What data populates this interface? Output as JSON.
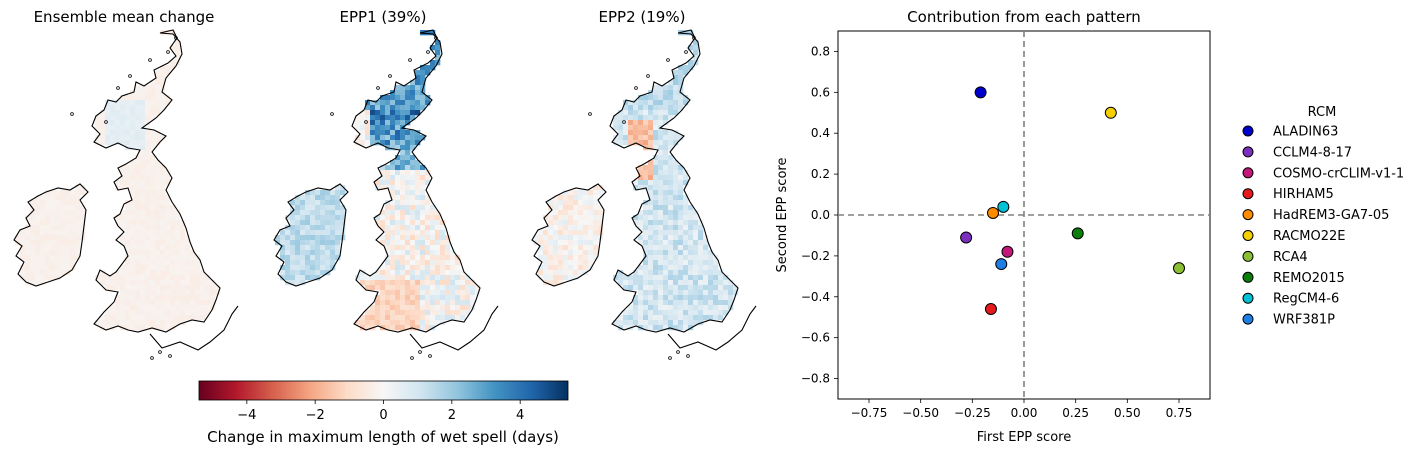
{
  "maps": [
    {
      "title": "Ensemble mean change",
      "pattern": "mean"
    },
    {
      "title": "EPP1 (39%)",
      "pattern": "epp1"
    },
    {
      "title": "EPP2 (19%)",
      "pattern": "epp2"
    }
  ],
  "colorbar": {
    "label": "Change in maximum length of wet spell (days)",
    "ticks": [
      "−4",
      "−2",
      "0",
      "2",
      "4"
    ],
    "tick_values": [
      -4,
      -2,
      0,
      2,
      4
    ],
    "range": [
      -5.4,
      5.4
    ],
    "colormap": [
      "#67001f",
      "#b2182b",
      "#d6604d",
      "#f4a582",
      "#fddbc7",
      "#f7f7f7",
      "#d1e5f0",
      "#92c5de",
      "#4393c3",
      "#2166ac",
      "#053061"
    ]
  },
  "chart_data": {
    "type": "scatter",
    "title": "Contribution from each pattern",
    "xlabel": "First EPP score",
    "ylabel": "Second EPP score",
    "xlim": [
      -0.9,
      0.9
    ],
    "ylim": [
      -0.9,
      0.9
    ],
    "xticks": [
      -0.75,
      -0.5,
      -0.25,
      0.0,
      0.25,
      0.5,
      0.75
    ],
    "xtick_labels": [
      "−0.75",
      "−0.50",
      "−0.25",
      "0.00",
      "0.25",
      "0.50",
      "0.75"
    ],
    "yticks": [
      0.8,
      0.6,
      0.4,
      0.2,
      0.0,
      -0.2,
      -0.4,
      -0.6,
      -0.8
    ],
    "ytick_labels": [
      "0.8",
      "0.6",
      "0.4",
      "0.2",
      "0.0",
      "−0.2",
      "−0.4",
      "−0.6",
      "−0.8"
    ],
    "reference_lines": {
      "x": 0,
      "y": 0,
      "style": "dashed",
      "color": "#808080"
    },
    "legend_title": "RCM",
    "legend_placement": "right, outside",
    "points": [
      {
        "name": "ALADIN63",
        "x": -0.21,
        "y": 0.6,
        "color": "#0000cc"
      },
      {
        "name": "CCLM4-8-17",
        "x": -0.28,
        "y": -0.11,
        "color": "#7b2fbe"
      },
      {
        "name": "COSMO-crCLIM-v1-1",
        "x": -0.08,
        "y": -0.18,
        "color": "#c2187a"
      },
      {
        "name": "HIRHAM5",
        "x": -0.16,
        "y": -0.46,
        "color": "#e41a1c"
      },
      {
        "name": "HadREM3-GA7-05",
        "x": -0.15,
        "y": 0.01,
        "color": "#ff8c00"
      },
      {
        "name": "RACMO22E",
        "x": 0.42,
        "y": 0.5,
        "color": "#f5d000"
      },
      {
        "name": "RCA4",
        "x": 0.75,
        "y": -0.26,
        "color": "#8bc034"
      },
      {
        "name": "REMO2015",
        "x": 0.26,
        "y": -0.09,
        "color": "#0a7d0a"
      },
      {
        "name": "RegCM4-6",
        "x": -0.1,
        "y": 0.04,
        "color": "#00c2d4"
      },
      {
        "name": "WRF381P",
        "x": -0.11,
        "y": -0.24,
        "color": "#1e7ee6"
      }
    ]
  }
}
